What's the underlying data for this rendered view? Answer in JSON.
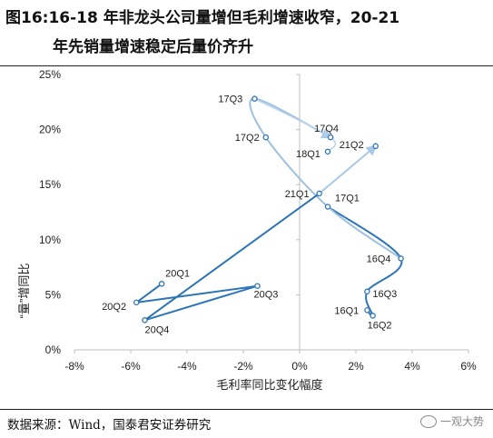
{
  "header": {
    "title_line1": "图16:16-18 年非龙头公司量增但毛利增速收窄，20-21",
    "title_line2": "年先销量增速稳定后量价齐升"
  },
  "footer": {
    "source": "数据来源：Wind，国泰君安证券研究",
    "watermark": "一观大势"
  },
  "colors": {
    "path": "#2e75b6",
    "path_light": "#b8d3ea",
    "text": "#222222",
    "axis": "#bfbfbf"
  },
  "chart_data": {
    "type": "scatter",
    "xlabel": "毛利率同比变化幅度",
    "ylabel": "“量”增同比",
    "xlim": [
      -8,
      6
    ],
    "ylim": [
      0,
      25
    ],
    "x_ticks": [
      "-8%",
      "-6%",
      "-4%",
      "-2%",
      "0%",
      "2%",
      "4%",
      "6%"
    ],
    "y_ticks": [
      "0%",
      "5%",
      "10%",
      "15%",
      "20%",
      "25%"
    ],
    "points": [
      {
        "label": "16Q1",
        "x": 2.4,
        "y": 3.6
      },
      {
        "label": "16Q2",
        "x": 2.6,
        "y": 3.1
      },
      {
        "label": "16Q3",
        "x": 2.4,
        "y": 5.3
      },
      {
        "label": "16Q4",
        "x": 3.6,
        "y": 8.3
      },
      {
        "label": "17Q1",
        "x": 1.0,
        "y": 13.0
      },
      {
        "label": "17Q2",
        "x": -1.2,
        "y": 19.3
      },
      {
        "label": "17Q3",
        "x": -1.6,
        "y": 22.8
      },
      {
        "label": "17Q4",
        "x": 1.1,
        "y": 19.3
      },
      {
        "label": "18Q1",
        "x": 1.0,
        "y": 18.0
      },
      {
        "label": "20Q1",
        "x": -4.9,
        "y": 6.0
      },
      {
        "label": "20Q2",
        "x": -5.8,
        "y": 4.3
      },
      {
        "label": "20Q3",
        "x": -1.5,
        "y": 5.8
      },
      {
        "label": "20Q4",
        "x": -5.5,
        "y": 2.7
      },
      {
        "label": "21Q1",
        "x": 0.7,
        "y": 14.2
      },
      {
        "label": "21Q2",
        "x": 2.7,
        "y": 18.5
      }
    ]
  }
}
